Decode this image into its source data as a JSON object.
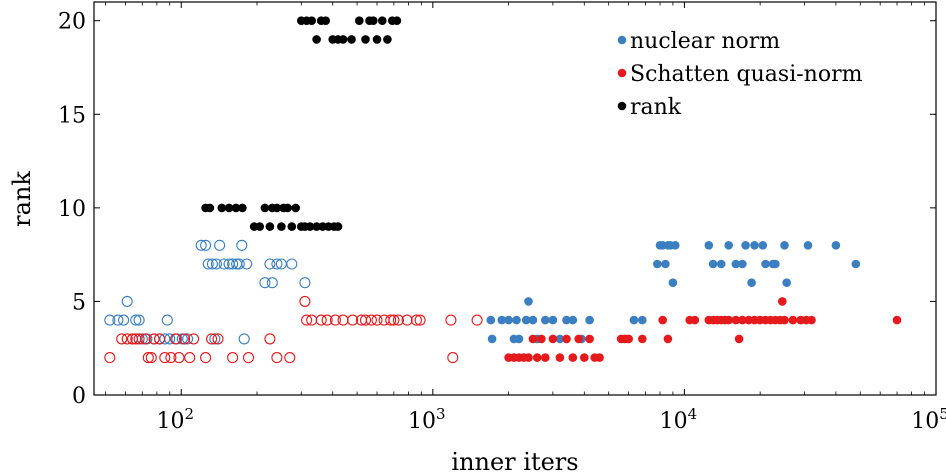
{
  "chart_data": {
    "type": "scatter",
    "title": "",
    "xlabel": "inner iters",
    "ylabel": "rank",
    "xscale": "log",
    "xlim": [
      45,
      100000
    ],
    "ylim": [
      0,
      21
    ],
    "xticks": [
      100,
      1000,
      10000,
      100000
    ],
    "xtick_labels": [
      {
        "base": "10",
        "exp": "2"
      },
      {
        "base": "10",
        "exp": "3"
      },
      {
        "base": "10",
        "exp": "4"
      },
      {
        "base": "10",
        "exp": "5"
      }
    ],
    "yticks": [
      0,
      5,
      10,
      15,
      20
    ],
    "ytick_labels": [
      "0",
      "5",
      "10",
      "15",
      "20"
    ],
    "grid": false,
    "legend_position": "top-right",
    "series": [
      {
        "name": "nuclear norm",
        "color": "#3b7fc0",
        "marker": "filled-circle",
        "points": [
          [
            1700,
            4
          ],
          [
            1720,
            3
          ],
          [
            1880,
            4
          ],
          [
            2000,
            4
          ],
          [
            2100,
            3
          ],
          [
            2150,
            4
          ],
          [
            2200,
            3
          ],
          [
            2350,
            4
          ],
          [
            2400,
            5
          ],
          [
            2500,
            4
          ],
          [
            2600,
            3
          ],
          [
            2800,
            4
          ],
          [
            3000,
            4
          ],
          [
            3200,
            3
          ],
          [
            3400,
            4
          ],
          [
            3600,
            4
          ],
          [
            3900,
            3
          ],
          [
            4200,
            4
          ],
          [
            6000,
            3
          ],
          [
            6300,
            4
          ],
          [
            6800,
            4
          ],
          [
            7800,
            7
          ],
          [
            8000,
            8
          ],
          [
            8200,
            8
          ],
          [
            8400,
            7
          ],
          [
            8600,
            8
          ],
          [
            8800,
            8
          ],
          [
            9000,
            6
          ],
          [
            9200,
            8
          ],
          [
            12500,
            8
          ],
          [
            13000,
            7
          ],
          [
            14000,
            7
          ],
          [
            15000,
            8
          ],
          [
            16000,
            7
          ],
          [
            17000,
            7
          ],
          [
            17500,
            8
          ],
          [
            18500,
            6
          ],
          [
            19000,
            8
          ],
          [
            20500,
            8
          ],
          [
            21000,
            7
          ],
          [
            22500,
            7
          ],
          [
            23000,
            7
          ],
          [
            25000,
            8
          ],
          [
            25500,
            6
          ],
          [
            31000,
            8
          ],
          [
            40000,
            8
          ],
          [
            48000,
            7
          ]
        ]
      },
      {
        "name": "Schatten quasi-norm",
        "color": "#e41a1c",
        "marker": "filled-circle",
        "points": [
          [
            2000,
            2
          ],
          [
            2100,
            2
          ],
          [
            2200,
            2
          ],
          [
            2300,
            2
          ],
          [
            2400,
            2
          ],
          [
            2500,
            3
          ],
          [
            2600,
            2
          ],
          [
            2700,
            3
          ],
          [
            2800,
            2
          ],
          [
            3000,
            3
          ],
          [
            3200,
            2
          ],
          [
            3400,
            3
          ],
          [
            3600,
            2
          ],
          [
            3800,
            3
          ],
          [
            4000,
            2
          ],
          [
            4200,
            3
          ],
          [
            4400,
            2
          ],
          [
            4600,
            2
          ],
          [
            5600,
            3
          ],
          [
            5800,
            3
          ],
          [
            6000,
            3
          ],
          [
            6800,
            3
          ],
          [
            8200,
            4
          ],
          [
            8600,
            3
          ],
          [
            10500,
            4
          ],
          [
            11000,
            4
          ],
          [
            12500,
            4
          ],
          [
            13000,
            4
          ],
          [
            13500,
            4
          ],
          [
            14000,
            4
          ],
          [
            14500,
            4
          ],
          [
            15000,
            4
          ],
          [
            16000,
            4
          ],
          [
            16500,
            3
          ],
          [
            17000,
            4
          ],
          [
            18000,
            4
          ],
          [
            19000,
            4
          ],
          [
            20000,
            4
          ],
          [
            21000,
            4
          ],
          [
            22000,
            4
          ],
          [
            23000,
            4
          ],
          [
            24000,
            4
          ],
          [
            24500,
            5
          ],
          [
            25000,
            4
          ],
          [
            27000,
            4
          ],
          [
            29000,
            4
          ],
          [
            30500,
            4
          ],
          [
            32000,
            4
          ],
          [
            70000,
            4
          ]
        ]
      },
      {
        "name": "rank",
        "color": "#000000",
        "marker": "filled-circle",
        "points": [
          [
            125,
            10
          ],
          [
            130,
            10
          ],
          [
            145,
            10
          ],
          [
            155,
            10
          ],
          [
            165,
            10
          ],
          [
            175,
            10
          ],
          [
            195,
            9
          ],
          [
            205,
            9
          ],
          [
            215,
            10
          ],
          [
            225,
            9
          ],
          [
            230,
            10
          ],
          [
            240,
            10
          ],
          [
            250,
            9
          ],
          [
            255,
            10
          ],
          [
            265,
            10
          ],
          [
            275,
            9
          ],
          [
            285,
            10
          ],
          [
            300,
            9
          ],
          [
            310,
            9
          ],
          [
            325,
            9
          ],
          [
            345,
            9
          ],
          [
            365,
            9
          ],
          [
            385,
            9
          ],
          [
            405,
            9
          ],
          [
            420,
            9
          ],
          [
            300,
            20
          ],
          [
            315,
            20
          ],
          [
            330,
            20
          ],
          [
            345,
            19
          ],
          [
            360,
            20
          ],
          [
            375,
            20
          ],
          [
            400,
            19
          ],
          [
            420,
            19
          ],
          [
            440,
            19
          ],
          [
            475,
            19
          ],
          [
            510,
            20
          ],
          [
            540,
            19
          ],
          [
            560,
            20
          ],
          [
            580,
            20
          ],
          [
            600,
            19
          ],
          [
            630,
            20
          ],
          [
            660,
            19
          ],
          [
            690,
            20
          ],
          [
            720,
            20
          ]
        ]
      },
      {
        "name": "",
        "color": "#3b7fc0",
        "marker": "open-circle",
        "points": [
          [
            52,
            4
          ],
          [
            56,
            4
          ],
          [
            59,
            4
          ],
          [
            61,
            5
          ],
          [
            64,
            3
          ],
          [
            66,
            4
          ],
          [
            68,
            4
          ],
          [
            70,
            3
          ],
          [
            73,
            3
          ],
          [
            78,
            3
          ],
          [
            82,
            3
          ],
          [
            86,
            3
          ],
          [
            88,
            4
          ],
          [
            90,
            3
          ],
          [
            96,
            3
          ],
          [
            101,
            3
          ],
          [
            106,
            3
          ],
          [
            120,
            8
          ],
          [
            125,
            8
          ],
          [
            128,
            7
          ],
          [
            133,
            7
          ],
          [
            136,
            3
          ],
          [
            138,
            7
          ],
          [
            142,
            8
          ],
          [
            148,
            7
          ],
          [
            155,
            7
          ],
          [
            160,
            7
          ],
          [
            166,
            7
          ],
          [
            170,
            7
          ],
          [
            174,
            8
          ],
          [
            178,
            3
          ],
          [
            182,
            7
          ],
          [
            215,
            6
          ],
          [
            225,
            7
          ],
          [
            230,
            6
          ],
          [
            240,
            7
          ],
          [
            250,
            7
          ],
          [
            275,
            7
          ],
          [
            310,
            6
          ]
        ]
      },
      {
        "name": "",
        "color": "#e41a1c",
        "marker": "open-circle",
        "points": [
          [
            52,
            2
          ],
          [
            58,
            3
          ],
          [
            61,
            3
          ],
          [
            64,
            3
          ],
          [
            66,
            3
          ],
          [
            68,
            3
          ],
          [
            72,
            3
          ],
          [
            74,
            2
          ],
          [
            76,
            2
          ],
          [
            78,
            3
          ],
          [
            82,
            3
          ],
          [
            86,
            2
          ],
          [
            91,
            2
          ],
          [
            95,
            3
          ],
          [
            98,
            2
          ],
          [
            103,
            3
          ],
          [
            108,
            2
          ],
          [
            112,
            3
          ],
          [
            125,
            2
          ],
          [
            132,
            3
          ],
          [
            140,
            3
          ],
          [
            160,
            2
          ],
          [
            185,
            2
          ],
          [
            225,
            3
          ],
          [
            240,
            2
          ],
          [
            270,
            2
          ],
          [
            310,
            5
          ],
          [
            315,
            4
          ],
          [
            330,
            4
          ],
          [
            360,
            4
          ],
          [
            380,
            4
          ],
          [
            410,
            4
          ],
          [
            440,
            4
          ],
          [
            480,
            4
          ],
          [
            520,
            4
          ],
          [
            540,
            4
          ],
          [
            570,
            4
          ],
          [
            600,
            4
          ],
          [
            640,
            4
          ],
          [
            680,
            4
          ],
          [
            700,
            4
          ],
          [
            730,
            4
          ],
          [
            790,
            4
          ],
          [
            860,
            4
          ],
          [
            890,
            4
          ],
          [
            1180,
            4
          ],
          [
            1200,
            2
          ],
          [
            1500,
            4
          ]
        ]
      }
    ]
  }
}
